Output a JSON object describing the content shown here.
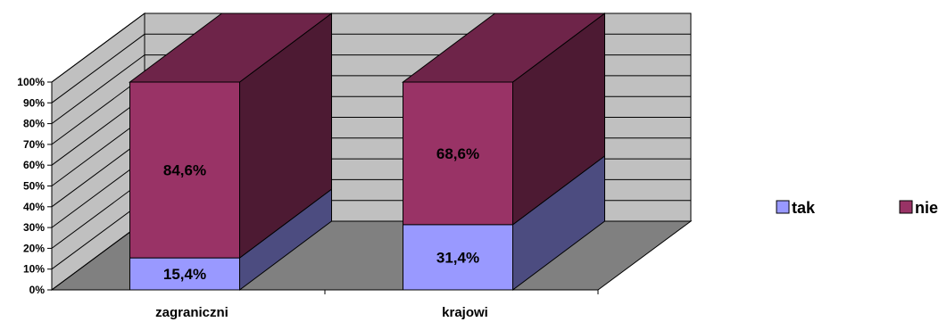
{
  "chart_data": {
    "type": "bar",
    "stacked": true,
    "percent_stacked": true,
    "three_d": true,
    "categories": [
      "zagraniczni",
      "krajowi"
    ],
    "series": [
      {
        "name": "tak",
        "values": [
          15.4,
          31.4
        ],
        "labels": [
          "15,4%",
          "31,4%"
        ],
        "color": "#9999ff",
        "side_color": "#4c4c80",
        "top_color": "#7070c0"
      },
      {
        "name": "nie",
        "values": [
          84.6,
          68.6
        ],
        "labels": [
          "84,6%",
          "68,6%"
        ],
        "color": "#993366",
        "side_color": "#4d1a33",
        "top_color": "#6e2449"
      }
    ],
    "y_ticks": [
      "0%",
      "10%",
      "20%",
      "30%",
      "40%",
      "50%",
      "60%",
      "70%",
      "80%",
      "90%",
      "100%"
    ],
    "ylim": [
      0,
      100
    ],
    "grid": true,
    "legend": "right",
    "colors": {
      "wall": "#c0c0c0",
      "floor": "#808080",
      "grid": "#000000"
    }
  }
}
